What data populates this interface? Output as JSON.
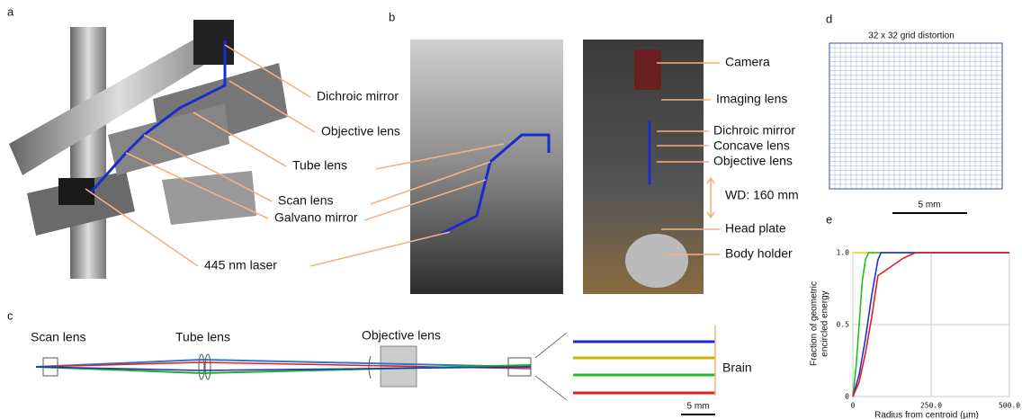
{
  "panels": {
    "a": {
      "label": "a",
      "callouts": [
        "Dichroic mirror",
        "Objective lens",
        "Tube lens",
        "Scan lens",
        "Galvano mirror",
        "445 nm laser"
      ]
    },
    "b": {
      "label": "b",
      "callouts": [
        "Camera",
        "Imaging lens",
        "Dichroic mirror",
        "Concave lens",
        "Objective lens",
        "WD: 160 mm",
        "Head plate",
        "Body holder"
      ]
    },
    "c": {
      "label": "c",
      "callouts": [
        "Scan lens",
        "Tube lens",
        "Objective lens",
        "Brain"
      ],
      "scale_bar": "5 mm"
    },
    "d": {
      "label": "d",
      "title": "32 x 32 grid distortion",
      "scale_bar": "5 mm"
    }
  },
  "chart_data": {
    "type": "line",
    "label": "e",
    "ylabel": [
      "Fraction of geometric",
      "encircled energy"
    ],
    "xlabel": "Radius from centroid (µm)",
    "xlim": [
      0,
      500
    ],
    "ylim": [
      0,
      1
    ],
    "xticks": [
      0,
      {
        "value": 250,
        "label": "250.0"
      },
      {
        "value": 500,
        "label": "500.0"
      }
    ],
    "yticks": [
      0,
      {
        "value": 0.5,
        "label": "0.5"
      },
      {
        "value": 1,
        "label": "1.0"
      }
    ],
    "grid": true,
    "series": [
      {
        "color": "#e8d000",
        "x": [
          0,
          500
        ],
        "values": [
          1,
          1
        ]
      },
      {
        "color": "#20c020",
        "x": [
          0,
          10,
          20,
          30,
          40,
          50,
          500
        ],
        "values": [
          0,
          0.2,
          0.5,
          0.8,
          0.95,
          1,
          1
        ]
      },
      {
        "color": "#2030d0",
        "x": [
          0,
          20,
          40,
          60,
          80,
          90,
          500
        ],
        "values": [
          0,
          0.15,
          0.4,
          0.7,
          0.95,
          1,
          1
        ]
      },
      {
        "color": "#e02020",
        "x": [
          0,
          20,
          40,
          60,
          80,
          120,
          160,
          200,
          500
        ],
        "values": [
          0,
          0.1,
          0.3,
          0.55,
          0.84,
          0.9,
          0.96,
          1,
          1
        ]
      }
    ]
  }
}
